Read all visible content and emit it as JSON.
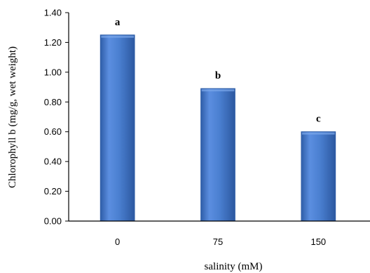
{
  "chart_data": {
    "type": "bar",
    "categories": [
      "0",
      "75",
      "150"
    ],
    "values": [
      1.25,
      0.89,
      0.6
    ],
    "annotations": [
      "a",
      "b",
      "c"
    ],
    "xlabel": "salinity (mM)",
    "ylabel": "Chlorophyll b (mg/g, wet weight)",
    "ylim": [
      0,
      1.4
    ],
    "yticks": [
      "0.00",
      "0.20",
      "0.40",
      "0.60",
      "0.80",
      "1.00",
      "1.20",
      "1.40"
    ],
    "grid": false,
    "legend": "none",
    "bar_color": "#4a7fd0",
    "bar_edge_color": "#2f5ea8"
  }
}
